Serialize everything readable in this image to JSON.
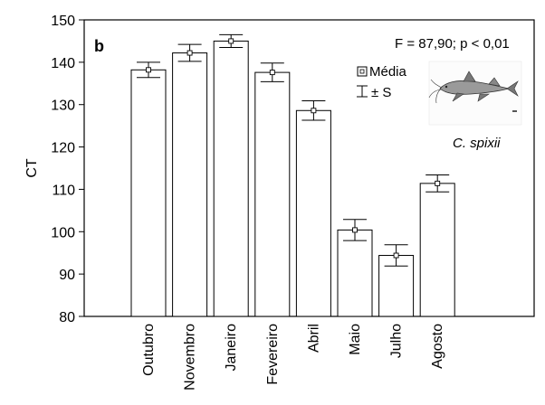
{
  "chart_data": {
    "type": "bar",
    "panel_label": "b",
    "ylabel": "CT",
    "xlabel": "",
    "ylim": [
      80,
      150
    ],
    "yticks": [
      80,
      90,
      100,
      110,
      120,
      130,
      140,
      150
    ],
    "grid": false,
    "categories": [
      "Outubro",
      "Novembro",
      "Janeiro",
      "Fevereiro",
      "Abril",
      "Maio",
      "Julho",
      "Agosto"
    ],
    "values": [
      138.2,
      142.2,
      145.0,
      137.6,
      128.6,
      100.4,
      94.4,
      111.4
    ],
    "errors": [
      1.8,
      2.0,
      1.5,
      2.2,
      2.3,
      2.5,
      2.5,
      2.0
    ],
    "stat_annotation": "F = 87,90; p < 0,01",
    "legend": {
      "placement": "top-right",
      "mean_label": "Média",
      "sd_label": "± S"
    },
    "species_label": "C. spixii"
  },
  "colors": {
    "bar_fill": "#ffffff",
    "stroke": "#000000",
    "background": "#ffffff"
  },
  "icons": {
    "fish": "fish-illustration-icon"
  }
}
